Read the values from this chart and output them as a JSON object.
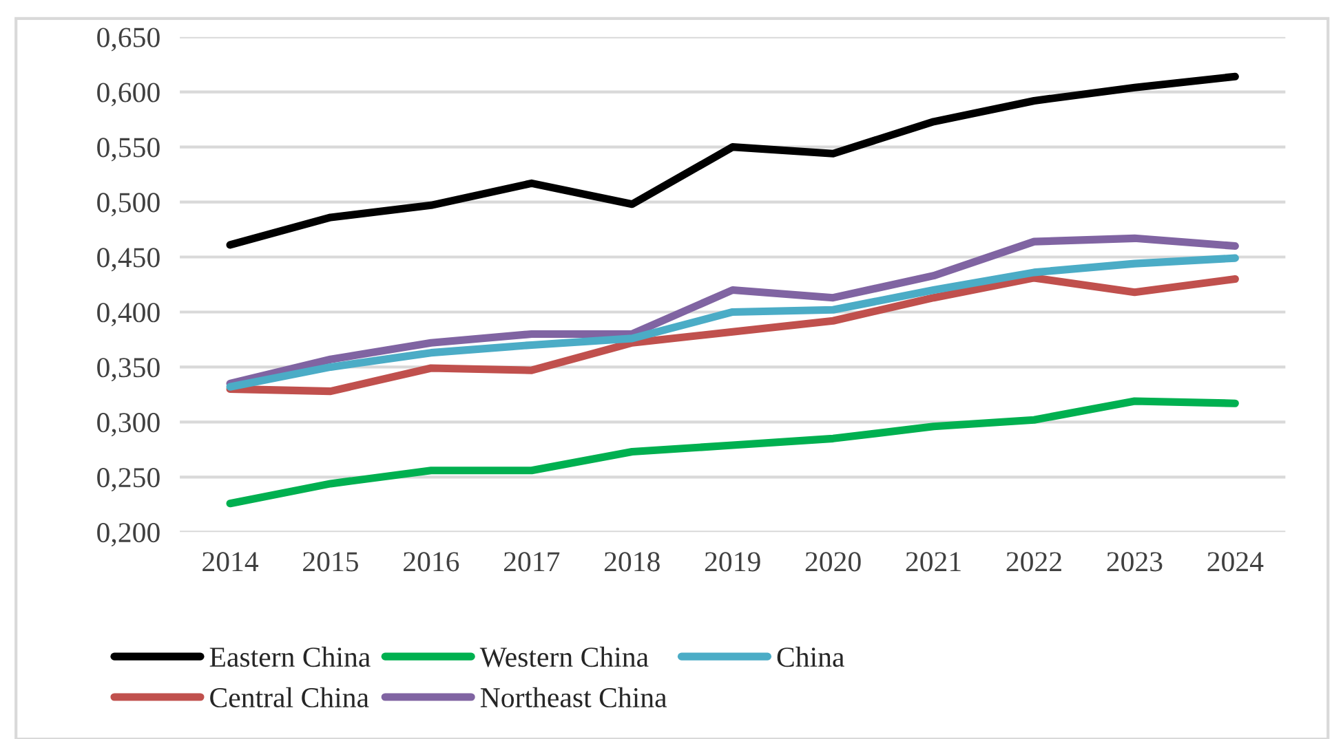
{
  "chart_data": {
    "type": "line",
    "categories": [
      "2014",
      "2015",
      "2016",
      "2017",
      "2018",
      "2019",
      "2020",
      "2021",
      "2022",
      "2023",
      "2024"
    ],
    "series": [
      {
        "name": "Eastern China",
        "color": "#000000",
        "values": [
          0.461,
          0.486,
          0.497,
          0.517,
          0.498,
          0.55,
          0.544,
          0.573,
          0.592,
          0.604,
          0.614
        ]
      },
      {
        "name": "Central China",
        "color": "#c0504d",
        "values": [
          0.33,
          0.328,
          0.349,
          0.347,
          0.372,
          0.382,
          0.392,
          0.413,
          0.431,
          0.418,
          0.43
        ]
      },
      {
        "name": "Western China",
        "color": "#00b050",
        "values": [
          0.226,
          0.244,
          0.256,
          0.256,
          0.273,
          0.279,
          0.285,
          0.296,
          0.302,
          0.319,
          0.317
        ]
      },
      {
        "name": "Northeast China",
        "color": "#8064a2",
        "values": [
          0.335,
          0.357,
          0.372,
          0.38,
          0.38,
          0.42,
          0.413,
          0.433,
          0.464,
          0.467,
          0.46
        ]
      },
      {
        "name": "China",
        "color": "#4bacc6",
        "values": [
          0.332,
          0.35,
          0.363,
          0.37,
          0.376,
          0.4,
          0.402,
          0.42,
          0.436,
          0.444,
          0.449
        ]
      }
    ],
    "ylim": [
      0.2,
      0.65
    ],
    "yticks": [
      {
        "value": 0.2,
        "label": "0,200"
      },
      {
        "value": 0.25,
        "label": "0,250"
      },
      {
        "value": 0.3,
        "label": "0,300"
      },
      {
        "value": 0.35,
        "label": "0,350"
      },
      {
        "value": 0.4,
        "label": "0,400"
      },
      {
        "value": 0.45,
        "label": "0,450"
      },
      {
        "value": 0.5,
        "label": "0,500"
      },
      {
        "value": 0.55,
        "label": "0,550"
      },
      {
        "value": 0.6,
        "label": "0,600"
      },
      {
        "value": 0.65,
        "label": "0,650"
      }
    ],
    "grid": "y",
    "legend": "bottom",
    "marker": "none",
    "line_style": "solid"
  }
}
